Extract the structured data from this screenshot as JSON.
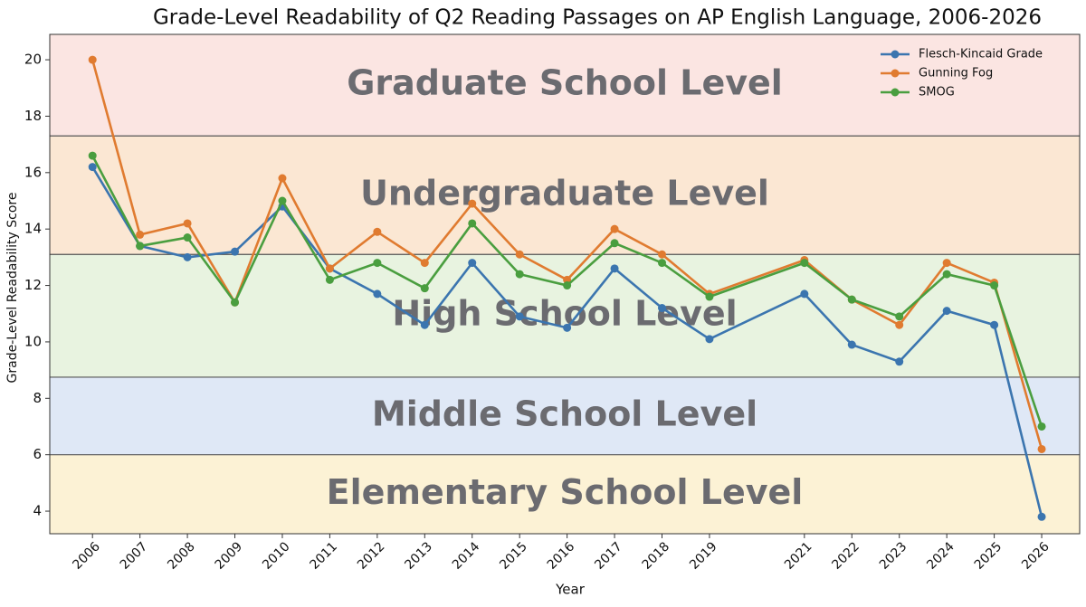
{
  "chart_data": {
    "type": "line",
    "title": "Grade-Level Readability of Q2 Reading Passages on AP English Language, 2006-2026",
    "xlabel": "Year",
    "ylabel": "Grade-Level Readability Score",
    "x": [
      2006,
      2007,
      2008,
      2009,
      2010,
      2011,
      2012,
      2013,
      2014,
      2015,
      2016,
      2017,
      2018,
      2019,
      2021,
      2022,
      2023,
      2024,
      2025,
      2026
    ],
    "series": [
      {
        "name": "Flesch-Kincaid Grade",
        "color": "#3b75af",
        "values": [
          16.2,
          13.4,
          13.0,
          13.2,
          14.8,
          12.6,
          11.7,
          10.6,
          12.8,
          10.9,
          10.5,
          12.6,
          11.2,
          10.1,
          11.7,
          9.9,
          9.3,
          11.1,
          10.6,
          3.8
        ]
      },
      {
        "name": "Gunning Fog",
        "color": "#e07b30",
        "values": [
          20.0,
          13.8,
          14.2,
          11.4,
          15.8,
          12.6,
          13.9,
          12.8,
          14.9,
          13.1,
          12.2,
          14.0,
          13.1,
          11.7,
          12.9,
          11.5,
          10.6,
          12.8,
          12.1,
          6.2
        ]
      },
      {
        "name": "SMOG",
        "color": "#4a9e3f",
        "values": [
          16.6,
          13.4,
          13.7,
          11.4,
          15.0,
          12.2,
          12.8,
          11.9,
          14.2,
          12.4,
          12.0,
          13.5,
          12.8,
          11.6,
          12.8,
          11.5,
          10.9,
          12.4,
          12.0,
          7.0
        ]
      }
    ],
    "bands": [
      {
        "label": "Elementary School Level",
        "from": 3.2,
        "to": 6.0,
        "color": "#fcf2d5"
      },
      {
        "label": "Middle School Level",
        "from": 6.0,
        "to": 8.75,
        "color": "#dfe8f6"
      },
      {
        "label": "High School Level",
        "from": 8.75,
        "to": 13.1,
        "color": "#e8f3e0"
      },
      {
        "label": "Undergraduate Level",
        "from": 13.1,
        "to": 17.3,
        "color": "#fbe7d3"
      },
      {
        "label": "Graduate School Level",
        "from": 17.3,
        "to": 20.9,
        "color": "#fbe5e2"
      }
    ],
    "xlim": [
      2005.1,
      2026.8
    ],
    "ylim": [
      3.2,
      20.9
    ],
    "xticks": [
      2006,
      2007,
      2008,
      2009,
      2010,
      2011,
      2012,
      2013,
      2014,
      2015,
      2016,
      2017,
      2018,
      2019,
      2021,
      2022,
      2023,
      2024,
      2025,
      2026
    ],
    "yticks": [
      4,
      6,
      8,
      10,
      12,
      14,
      16,
      18,
      20
    ],
    "legend": "upper right",
    "grid": false
  }
}
